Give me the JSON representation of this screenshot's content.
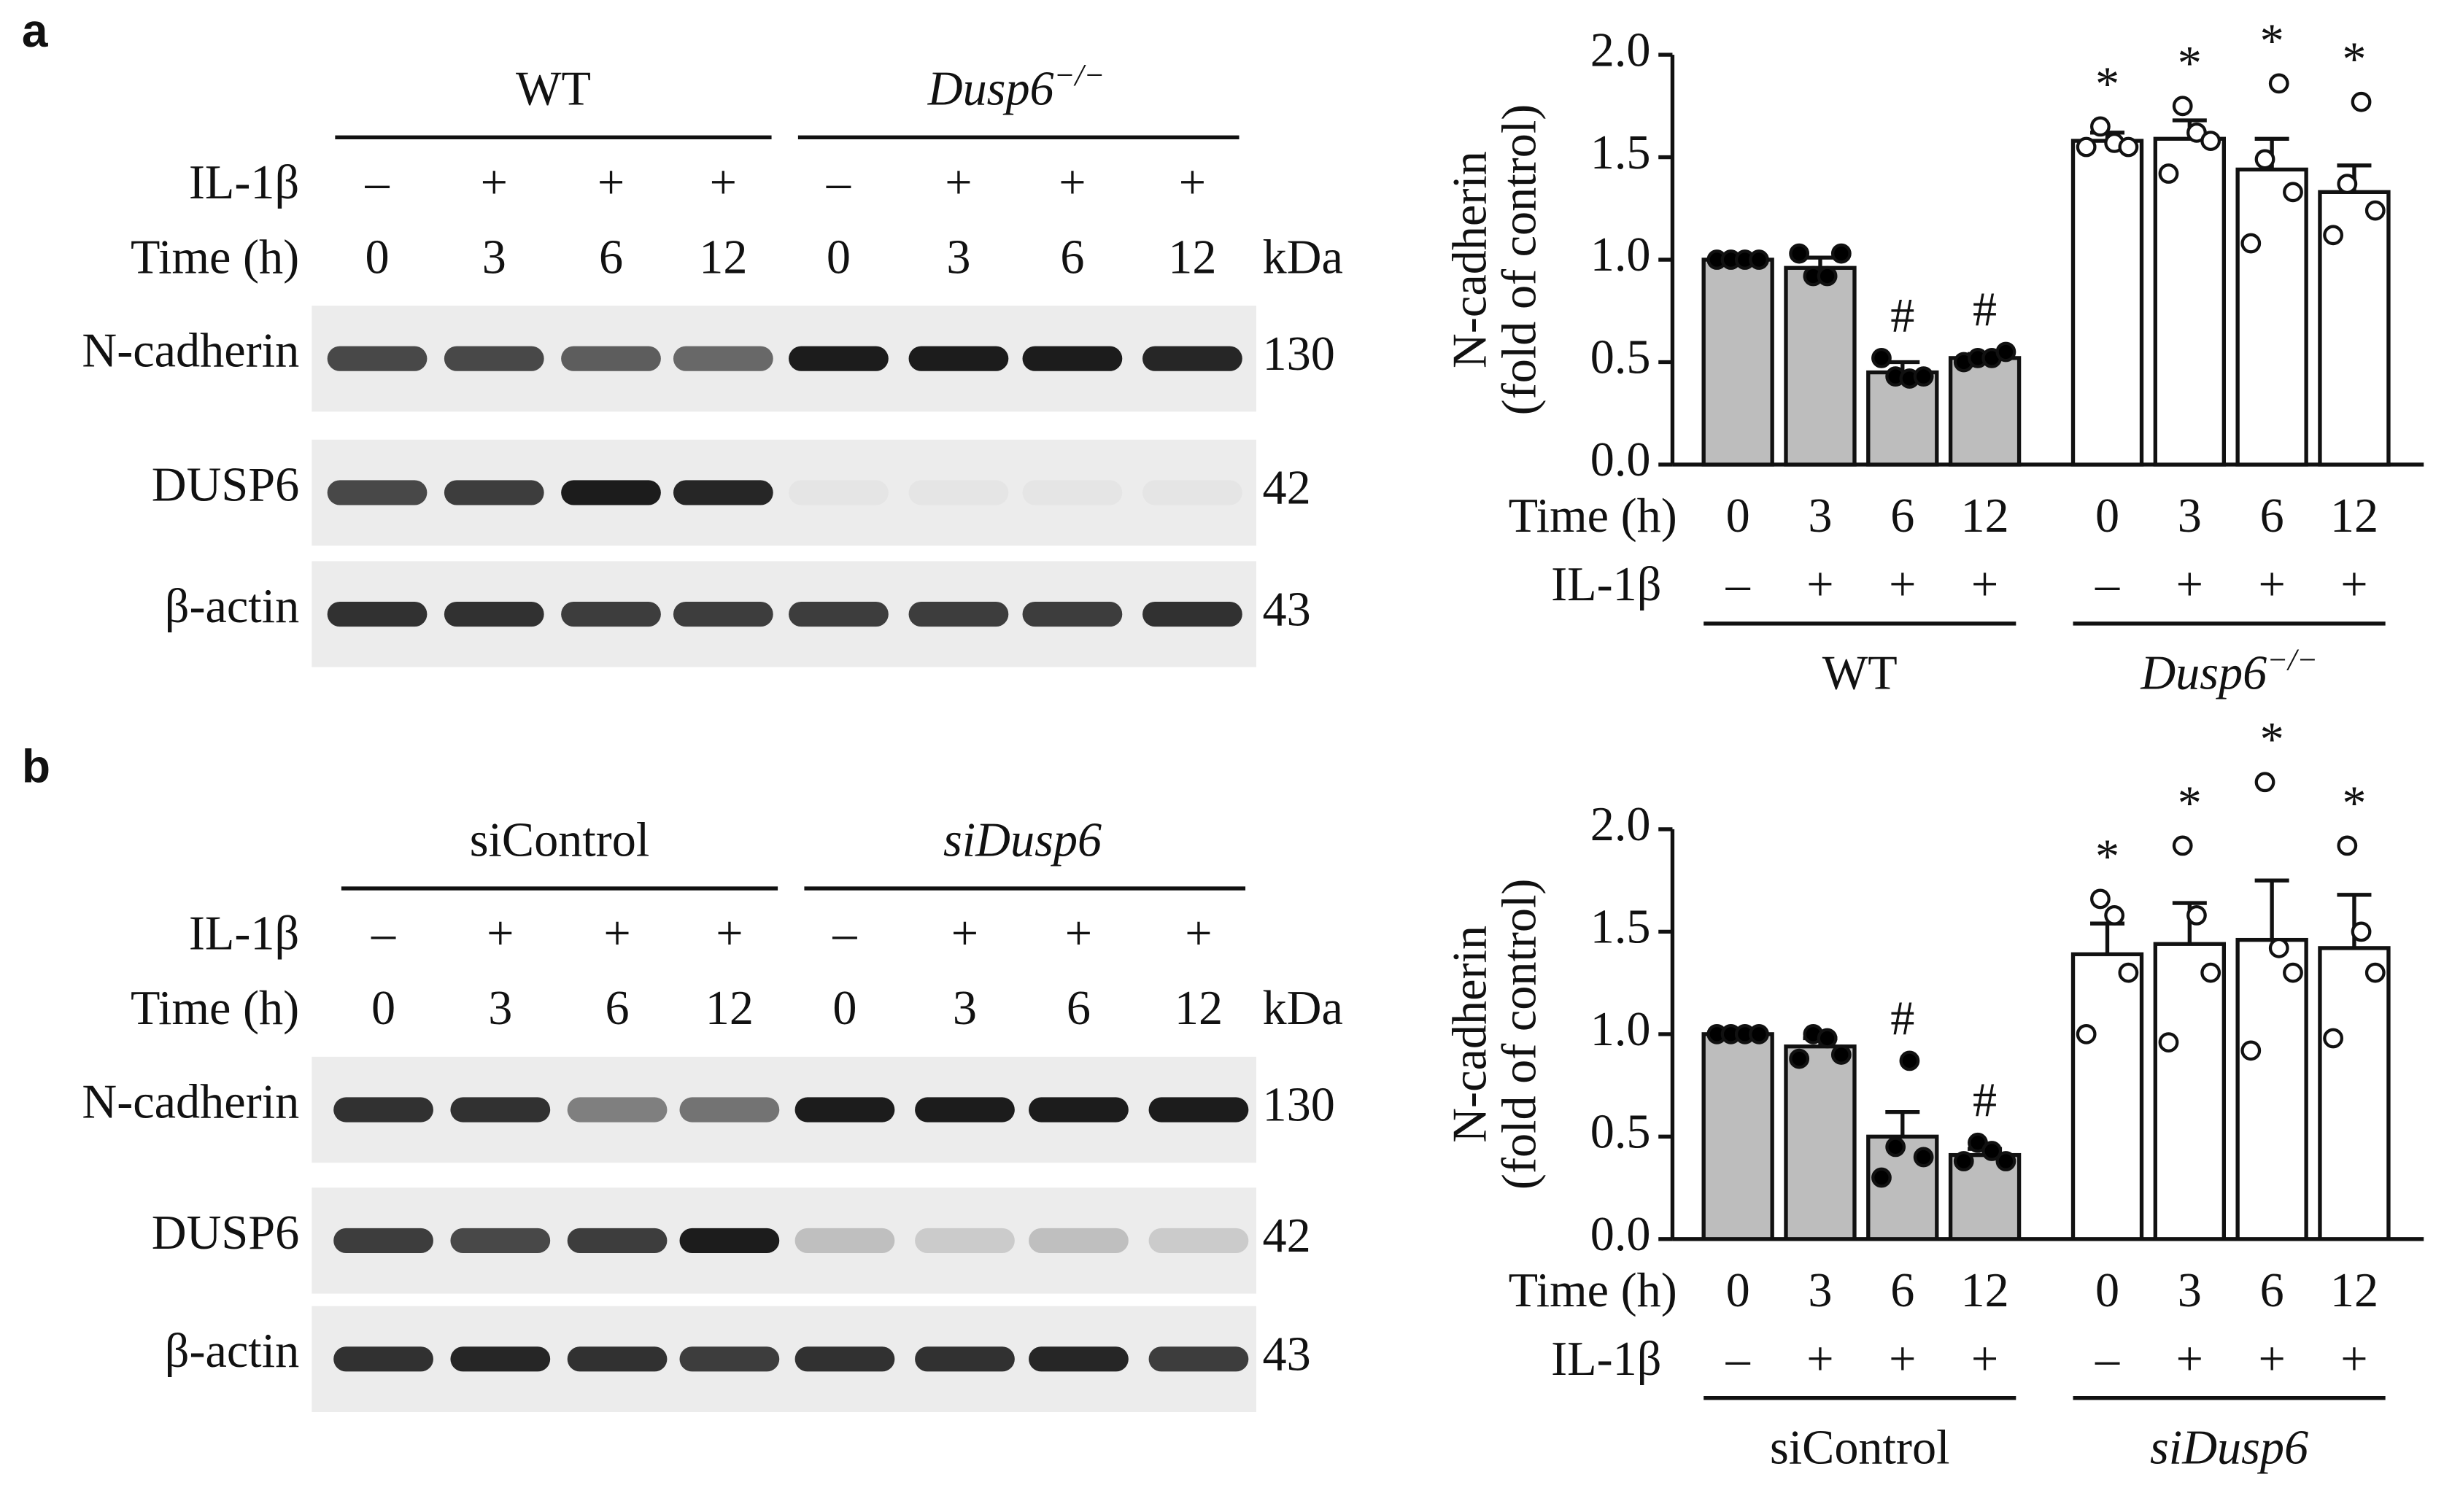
{
  "panel_labels": [
    "a",
    "b"
  ],
  "blots": [
    {
      "group_labels": [
        {
          "name": "WT",
          "italic": false
        },
        {
          "name": "Dusp6",
          "superscript": "−/−",
          "italic": true
        }
      ],
      "treatment_label": "IL-1β",
      "treatment": [
        "–",
        "+",
        "+",
        "+",
        "–",
        "+",
        "+",
        "+"
      ],
      "time_label": "Time (h)",
      "times": [
        0,
        3,
        6,
        12,
        0,
        3,
        6,
        12
      ],
      "unit_label": "kDa",
      "rows": [
        {
          "name": "N-cadherin",
          "kda": 130,
          "intensity": [
            0.75,
            0.75,
            0.65,
            0.6,
            0.95,
            0.95,
            0.95,
            0.9
          ]
        },
        {
          "name": "DUSP6",
          "kda": 42,
          "intensity": [
            0.75,
            0.8,
            0.95,
            0.9,
            0.03,
            0.03,
            0.03,
            0.03
          ]
        },
        {
          "name": "β-actin",
          "kda": 43,
          "intensity": [
            0.85,
            0.85,
            0.8,
            0.8,
            0.8,
            0.8,
            0.8,
            0.85
          ]
        }
      ]
    },
    {
      "group_labels": [
        {
          "name": "siControl",
          "italic": false
        },
        {
          "name": "siDusp6",
          "italic": true
        }
      ],
      "treatment_label": "IL-1β",
      "treatment": [
        "–",
        "+",
        "+",
        "+",
        "–",
        "+",
        "+",
        "+"
      ],
      "time_label": "Time (h)",
      "times": [
        0,
        3,
        6,
        12,
        0,
        3,
        6,
        12
      ],
      "unit_label": "kDa",
      "rows": [
        {
          "name": "N-cadherin",
          "kda": 130,
          "intensity": [
            0.85,
            0.85,
            0.5,
            0.55,
            0.95,
            0.95,
            0.95,
            0.95
          ]
        },
        {
          "name": "DUSP6",
          "kda": 42,
          "intensity": [
            0.8,
            0.75,
            0.8,
            0.95,
            0.2,
            0.15,
            0.2,
            0.15
          ]
        },
        {
          "name": "β-actin",
          "kda": 43,
          "intensity": [
            0.85,
            0.9,
            0.85,
            0.8,
            0.85,
            0.85,
            0.9,
            0.8
          ]
        }
      ]
    }
  ],
  "chart_data": [
    {
      "type": "bar",
      "ylabel": [
        "N-cadherin",
        "(fold of control)"
      ],
      "ylim": [
        0,
        2
      ],
      "yticks": [
        {
          "value": 0,
          "label": "0.0"
        },
        {
          "value": 0.5,
          "label": "0.5"
        },
        {
          "value": 1,
          "label": "1.0"
        },
        {
          "value": 1.5,
          "label": "1.5"
        },
        {
          "value": 2,
          "label": "2.0"
        }
      ],
      "time_label": "Time (h)",
      "treatment_label": "IL-1β",
      "series": [
        {
          "name": "WT",
          "italic": false,
          "color": "#bdbdbd",
          "point_color": "#000000",
          "categories": [
            0,
            3,
            6,
            12
          ],
          "treatment": [
            "–",
            "+",
            "+",
            "+"
          ],
          "values": [
            1.0,
            0.96,
            0.45,
            0.52
          ],
          "errors": [
            0.0,
            0.05,
            0.05,
            0.02
          ],
          "points": [
            [
              1.0,
              1.0,
              1.0,
              1.0
            ],
            [
              1.03,
              0.92,
              0.92,
              1.03
            ],
            [
              0.52,
              0.43,
              0.42,
              0.43
            ],
            [
              0.5,
              0.52,
              0.52,
              0.55
            ]
          ],
          "annotations": [
            null,
            null,
            "#",
            "#"
          ]
        },
        {
          "name": "Dusp6",
          "superscript": "−/−",
          "italic": true,
          "color": "#ffffff",
          "point_color": "#ffffff",
          "categories": [
            0,
            3,
            6,
            12
          ],
          "treatment": [
            "–",
            "+",
            "+",
            "+"
          ],
          "values": [
            1.58,
            1.59,
            1.44,
            1.33
          ],
          "errors": [
            0.04,
            0.09,
            0.15,
            0.13
          ],
          "points": [
            [
              1.55,
              1.65,
              1.57,
              1.55
            ],
            [
              1.42,
              1.75,
              1.62,
              1.58
            ],
            [
              1.08,
              1.49,
              1.86,
              1.33
            ],
            [
              1.12,
              1.37,
              1.77,
              1.24
            ]
          ],
          "annotations": [
            "*",
            "*",
            "*",
            "*"
          ]
        }
      ]
    },
    {
      "type": "bar",
      "ylabel": [
        "N-cadherin",
        "(fold of control)"
      ],
      "ylim": [
        0,
        2
      ],
      "yticks": [
        {
          "value": 0,
          "label": "0.0"
        },
        {
          "value": 0.5,
          "label": "0.5"
        },
        {
          "value": 1,
          "label": "1.0"
        },
        {
          "value": 1.5,
          "label": "1.5"
        },
        {
          "value": 2,
          "label": "2.0"
        }
      ],
      "time_label": "Time (h)",
      "treatment_label": "IL-1β",
      "series": [
        {
          "name": "siControl",
          "italic": false,
          "color": "#bdbdbd",
          "point_color": "#000000",
          "categories": [
            0,
            3,
            6,
            12
          ],
          "treatment": [
            "–",
            "+",
            "+",
            "+"
          ],
          "values": [
            1.0,
            0.94,
            0.5,
            0.41
          ],
          "errors": [
            0.0,
            0.04,
            0.12,
            0.03
          ],
          "points": [
            [
              1.0,
              1.0,
              1.0,
              1.0
            ],
            [
              0.88,
              1.0,
              0.98,
              0.9
            ],
            [
              0.3,
              0.45,
              0.87,
              0.4
            ],
            [
              0.38,
              0.47,
              0.43,
              0.38
            ]
          ],
          "annotations": [
            null,
            null,
            "#",
            "#"
          ]
        },
        {
          "name": "siDusp6",
          "italic": true,
          "color": "#ffffff",
          "point_color": "#ffffff",
          "categories": [
            0,
            3,
            6,
            12
          ],
          "treatment": [
            "–",
            "+",
            "+",
            "+"
          ],
          "values": [
            1.39,
            1.44,
            1.46,
            1.42
          ],
          "errors": [
            0.15,
            0.2,
            0.29,
            0.26
          ],
          "points": [
            [
              1.0,
              1.66,
              1.58,
              1.3
            ],
            [
              0.96,
              1.92,
              1.58,
              1.3
            ],
            [
              0.92,
              2.23,
              1.42,
              1.3
            ],
            [
              0.98,
              1.92,
              1.5,
              1.3
            ]
          ],
          "annotations": [
            "*",
            "*",
            "*",
            "*"
          ]
        }
      ]
    }
  ]
}
